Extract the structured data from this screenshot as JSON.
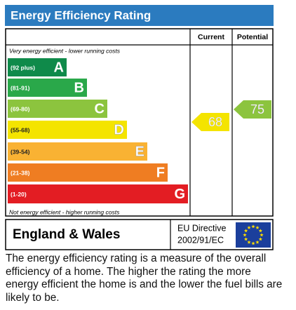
{
  "header": {
    "title": "Energy Efficiency Rating"
  },
  "columns": [
    "Current",
    "Potential"
  ],
  "top_note": "Very energy efficient - lower running costs",
  "bands": [
    {
      "range": "(92 plus)",
      "letter": "A",
      "color": "#0f8a4a"
    },
    {
      "range": "(81-91)",
      "letter": "B",
      "color": "#2aa84a"
    },
    {
      "range": "(69-80)",
      "letter": "C",
      "color": "#8cc43e"
    },
    {
      "range": "(55-68)",
      "letter": "D",
      "color": "#f4e400"
    },
    {
      "range": "(39-54)",
      "letter": "E",
      "color": "#f9b233"
    },
    {
      "range": "(21-38)",
      "letter": "F",
      "color": "#ef7d22"
    },
    {
      "range": "(1-20)",
      "letter": "G",
      "color": "#e31d23"
    }
  ],
  "bottom_note": "Not energy efficient - higher running costs",
  "current": {
    "value": 68,
    "color": "#f4e400"
  },
  "potential": {
    "value": 75,
    "color": "#8cc43e"
  },
  "footer": {
    "region": "England & Wales",
    "directive": [
      "EU Directive",
      "2002/91/EC"
    ]
  },
  "description": "The energy efficiency rating is a measure of the overall efficiency of a home. The higher the rating the more energy efficient the home is and the lower the fuel bills are likely to be."
}
